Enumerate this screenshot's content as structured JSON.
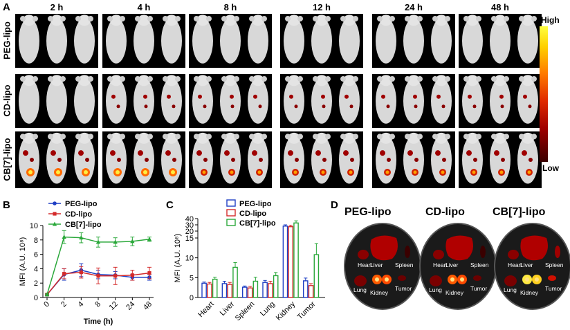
{
  "panel_a": {
    "letter": "A",
    "time_points": [
      "2 h",
      "4 h",
      "8 h",
      "12 h",
      "24 h",
      "48 h"
    ],
    "rows": [
      "PEG-lipo",
      "CD-lipo",
      "CB[7]-lipo"
    ],
    "colorbar": {
      "high": "High",
      "low": "Low"
    }
  },
  "chart_data": [
    {
      "type": "line",
      "panel": "B",
      "xlabel": "Time (h)",
      "ylabel": "MFI (A.U. 10⁸)",
      "ylim": [
        0,
        10
      ],
      "yticks": [
        0,
        2,
        4,
        6,
        8,
        10
      ],
      "x_categories": [
        "0",
        "2",
        "4",
        "8",
        "12",
        "24",
        "48"
      ],
      "legend_position": "top-left",
      "series": [
        {
          "name": "PEG-lipo",
          "color": "#1f3fc4",
          "marker": "circle",
          "values": [
            0.4,
            3.2,
            3.8,
            3.2,
            3.1,
            2.8,
            2.8
          ],
          "errors": [
            0.1,
            0.8,
            0.9,
            0.6,
            0.5,
            0.4,
            0.4
          ]
        },
        {
          "name": "CD-lipo",
          "color": "#d42a2a",
          "marker": "square",
          "values": [
            0.4,
            3.3,
            3.5,
            3.0,
            3.0,
            3.1,
            3.4
          ],
          "errors": [
            0.1,
            0.7,
            0.8,
            1.1,
            1.2,
            0.7,
            0.8
          ]
        },
        {
          "name": "CB[7]-lipo",
          "color": "#2aa83a",
          "marker": "triangle",
          "values": [
            0.4,
            8.4,
            8.3,
            7.7,
            7.7,
            7.8,
            8.1
          ],
          "errors": [
            0.1,
            0.9,
            0.7,
            0.7,
            0.6,
            0.6,
            0.3
          ]
        }
      ]
    },
    {
      "type": "bar",
      "panel": "C",
      "ylabel": "MFI (A.U. 10⁸)",
      "categories": [
        "Heart",
        "Liver",
        "Spleen",
        "Lung",
        "Kidney",
        "Tumor"
      ],
      "yticks": [
        0,
        5,
        10,
        15,
        20,
        30,
        40
      ],
      "axis_break": [
        20,
        30
      ],
      "legend_position": "top-right",
      "series": [
        {
          "name": "PEG-lipo",
          "color": "#1f3fc4",
          "values": [
            3.6,
            3.5,
            2.6,
            3.8,
            28,
            4.2
          ],
          "errors": [
            0.3,
            0.6,
            0.3,
            0.5,
            2.0,
            0.7
          ]
        },
        {
          "name": "CD-lipo",
          "color": "#d42a2a",
          "values": [
            3.4,
            3.3,
            2.4,
            3.5,
            27,
            3.0
          ],
          "errors": [
            0.4,
            0.5,
            0.4,
            0.6,
            2.5,
            0.5
          ]
        },
        {
          "name": "CB[7]-lipo",
          "color": "#2aa83a",
          "values": [
            4.6,
            7.6,
            4.1,
            5.5,
            33,
            10.8
          ],
          "errors": [
            0.5,
            1.2,
            1.0,
            0.8,
            3.5,
            2.8
          ]
        }
      ]
    }
  ],
  "panel_b": {
    "letter": "B"
  },
  "panel_c": {
    "letter": "C"
  },
  "panel_d": {
    "letter": "D",
    "dishes": [
      {
        "title": "PEG-lipo"
      },
      {
        "title": "CD-lipo"
      },
      {
        "title": "CB[7]-lipo"
      }
    ],
    "organs": [
      "Heart",
      "Liver",
      "Spleen",
      "Lung",
      "Kidney",
      "Tumor"
    ]
  }
}
